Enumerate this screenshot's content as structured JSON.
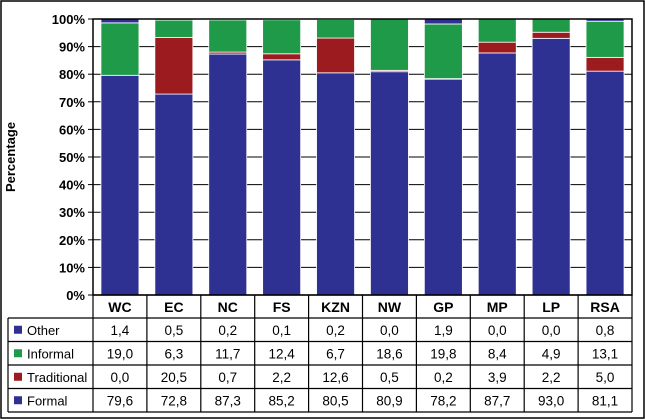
{
  "chart_data": {
    "type": "bar",
    "stacked": true,
    "title": "",
    "xlabel": "",
    "ylabel": "Percentage",
    "ylim": [
      0,
      100
    ],
    "y_ticks": [
      "0%",
      "10%",
      "20%",
      "30%",
      "40%",
      "50%",
      "60%",
      "70%",
      "80%",
      "90%",
      "100%"
    ],
    "grid": true,
    "legend": "table-below",
    "categories": [
      "WC",
      "EC",
      "NC",
      "FS",
      "KZN",
      "NW",
      "GP",
      "MP",
      "LP",
      "RSA"
    ],
    "series": [
      {
        "name": "Formal",
        "color": "#2e3192",
        "values": [
          79.6,
          72.8,
          87.3,
          85.2,
          80.5,
          80.9,
          78.2,
          87.7,
          93.0,
          81.1
        ],
        "labels": [
          "79,6",
          "72,8",
          "87,3",
          "85,2",
          "80,5",
          "80,9",
          "78,2",
          "87,7",
          "93,0",
          "81,1"
        ]
      },
      {
        "name": "Traditional",
        "color": "#9b1b1f",
        "values": [
          0.0,
          20.5,
          0.7,
          2.2,
          12.6,
          0.5,
          0.2,
          3.9,
          2.2,
          5.0
        ],
        "labels": [
          "0,0",
          "20,5",
          "0,7",
          "2,2",
          "12,6",
          "0,5",
          "0,2",
          "3,9",
          "2,2",
          "5,0"
        ]
      },
      {
        "name": "Informal",
        "color": "#1f9a48",
        "values": [
          19.0,
          6.3,
          11.7,
          12.4,
          6.7,
          18.6,
          19.8,
          8.4,
          4.9,
          13.1
        ],
        "labels": [
          "19,0",
          "6,3",
          "11,7",
          "12,4",
          "6,7",
          "18,6",
          "19,8",
          "8,4",
          "4,9",
          "13,1"
        ]
      },
      {
        "name": "Other",
        "color": "#2e3192",
        "values": [
          1.4,
          0.5,
          0.2,
          0.1,
          0.2,
          0.0,
          1.9,
          0.0,
          0.0,
          0.8
        ],
        "labels": [
          "1,4",
          "0,5",
          "0,2",
          "0,1",
          "0,2",
          "0,0",
          "1,9",
          "0,0",
          "0,0",
          "0,8"
        ]
      }
    ],
    "table_row_order": [
      3,
      2,
      1,
      0
    ]
  }
}
